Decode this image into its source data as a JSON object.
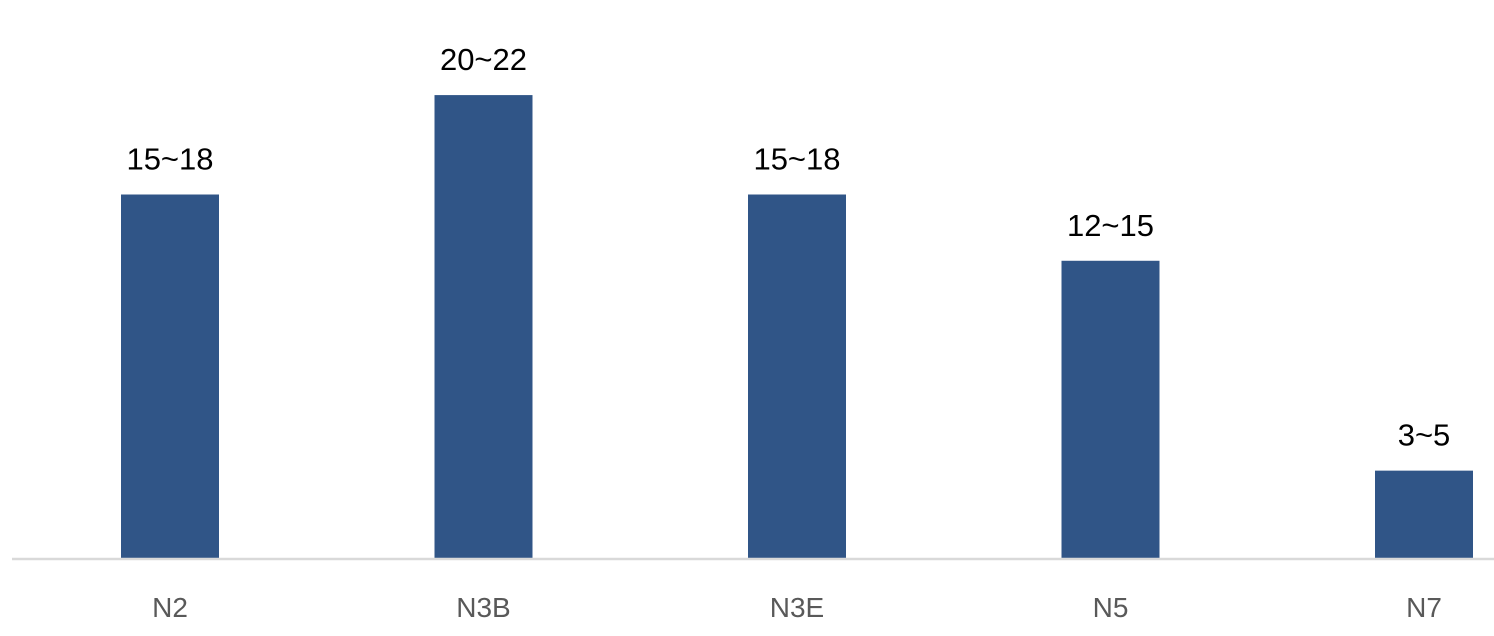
{
  "chart_data": {
    "type": "bar",
    "title": "",
    "xlabel": "",
    "ylabel": "",
    "categories": [
      "N2",
      "N3B",
      "N3E",
      "N5",
      "N7"
    ],
    "values": [
      16.5,
      21,
      16.5,
      13.5,
      4
    ],
    "value_labels": [
      "15~18",
      "20~22",
      "15~18",
      "12~15",
      "3~5"
    ],
    "ylim": [
      0,
      22
    ],
    "grid": false,
    "legend": "none",
    "colors": {
      "bar": "#305587",
      "axis": "#d9d9d9",
      "tick_text": "#595959",
      "label_text": "#000000"
    }
  }
}
